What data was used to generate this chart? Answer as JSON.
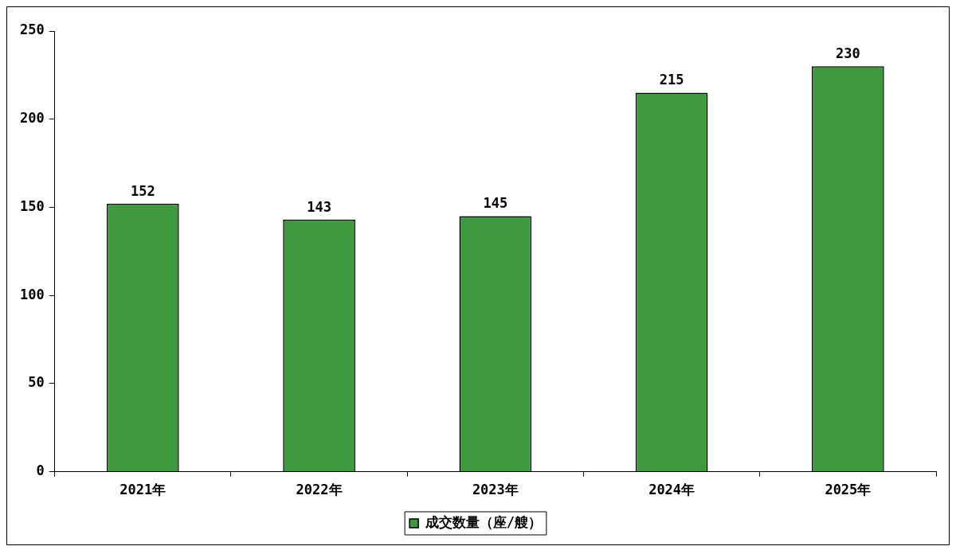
{
  "chart_data": {
    "type": "bar",
    "categories": [
      "2021年",
      "2022年",
      "2023年",
      "2024年",
      "2025年"
    ],
    "series": [
      {
        "name": "成交数量（座/艘）",
        "color": "#3f9a3f",
        "values": [
          152,
          143,
          145,
          215,
          230
        ]
      }
    ],
    "ylim": [
      0,
      250
    ],
    "yticks": [
      0,
      50,
      100,
      150,
      200,
      250
    ],
    "grid": false,
    "legend": "bottom",
    "data_labels": true
  }
}
